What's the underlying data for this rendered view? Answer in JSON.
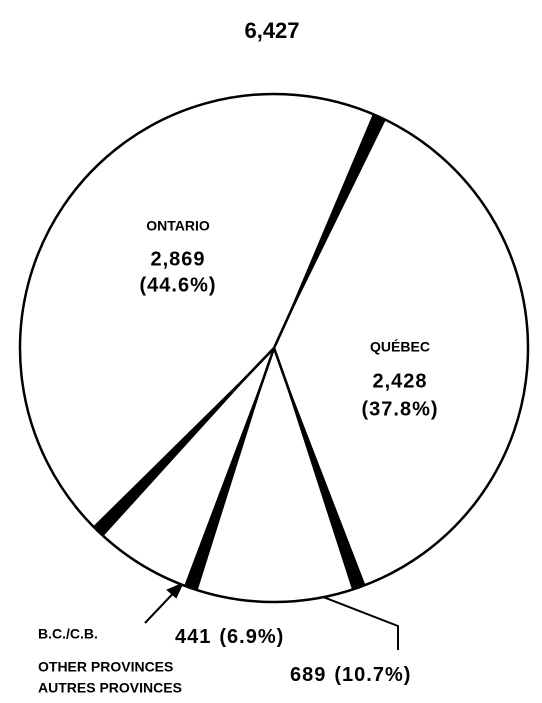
{
  "chart_data": {
    "type": "pie",
    "title": "6,427",
    "categories": [
      [
        "QUÉBEC"
      ],
      [
        "OTHER PROVINCES",
        "AUTRES PROVINCES"
      ],
      [
        "B.C./C.B."
      ],
      [
        "ONTARIO"
      ]
    ],
    "values": [
      2428,
      689,
      441,
      2869
    ],
    "value_labels": [
      "2,428",
      "689",
      "441",
      "2,869"
    ],
    "percent_labels": [
      "(37.8%)",
      "(10.7%)",
      "(6.9%)",
      "(44.6%)"
    ],
    "color": "#ffffff"
  }
}
